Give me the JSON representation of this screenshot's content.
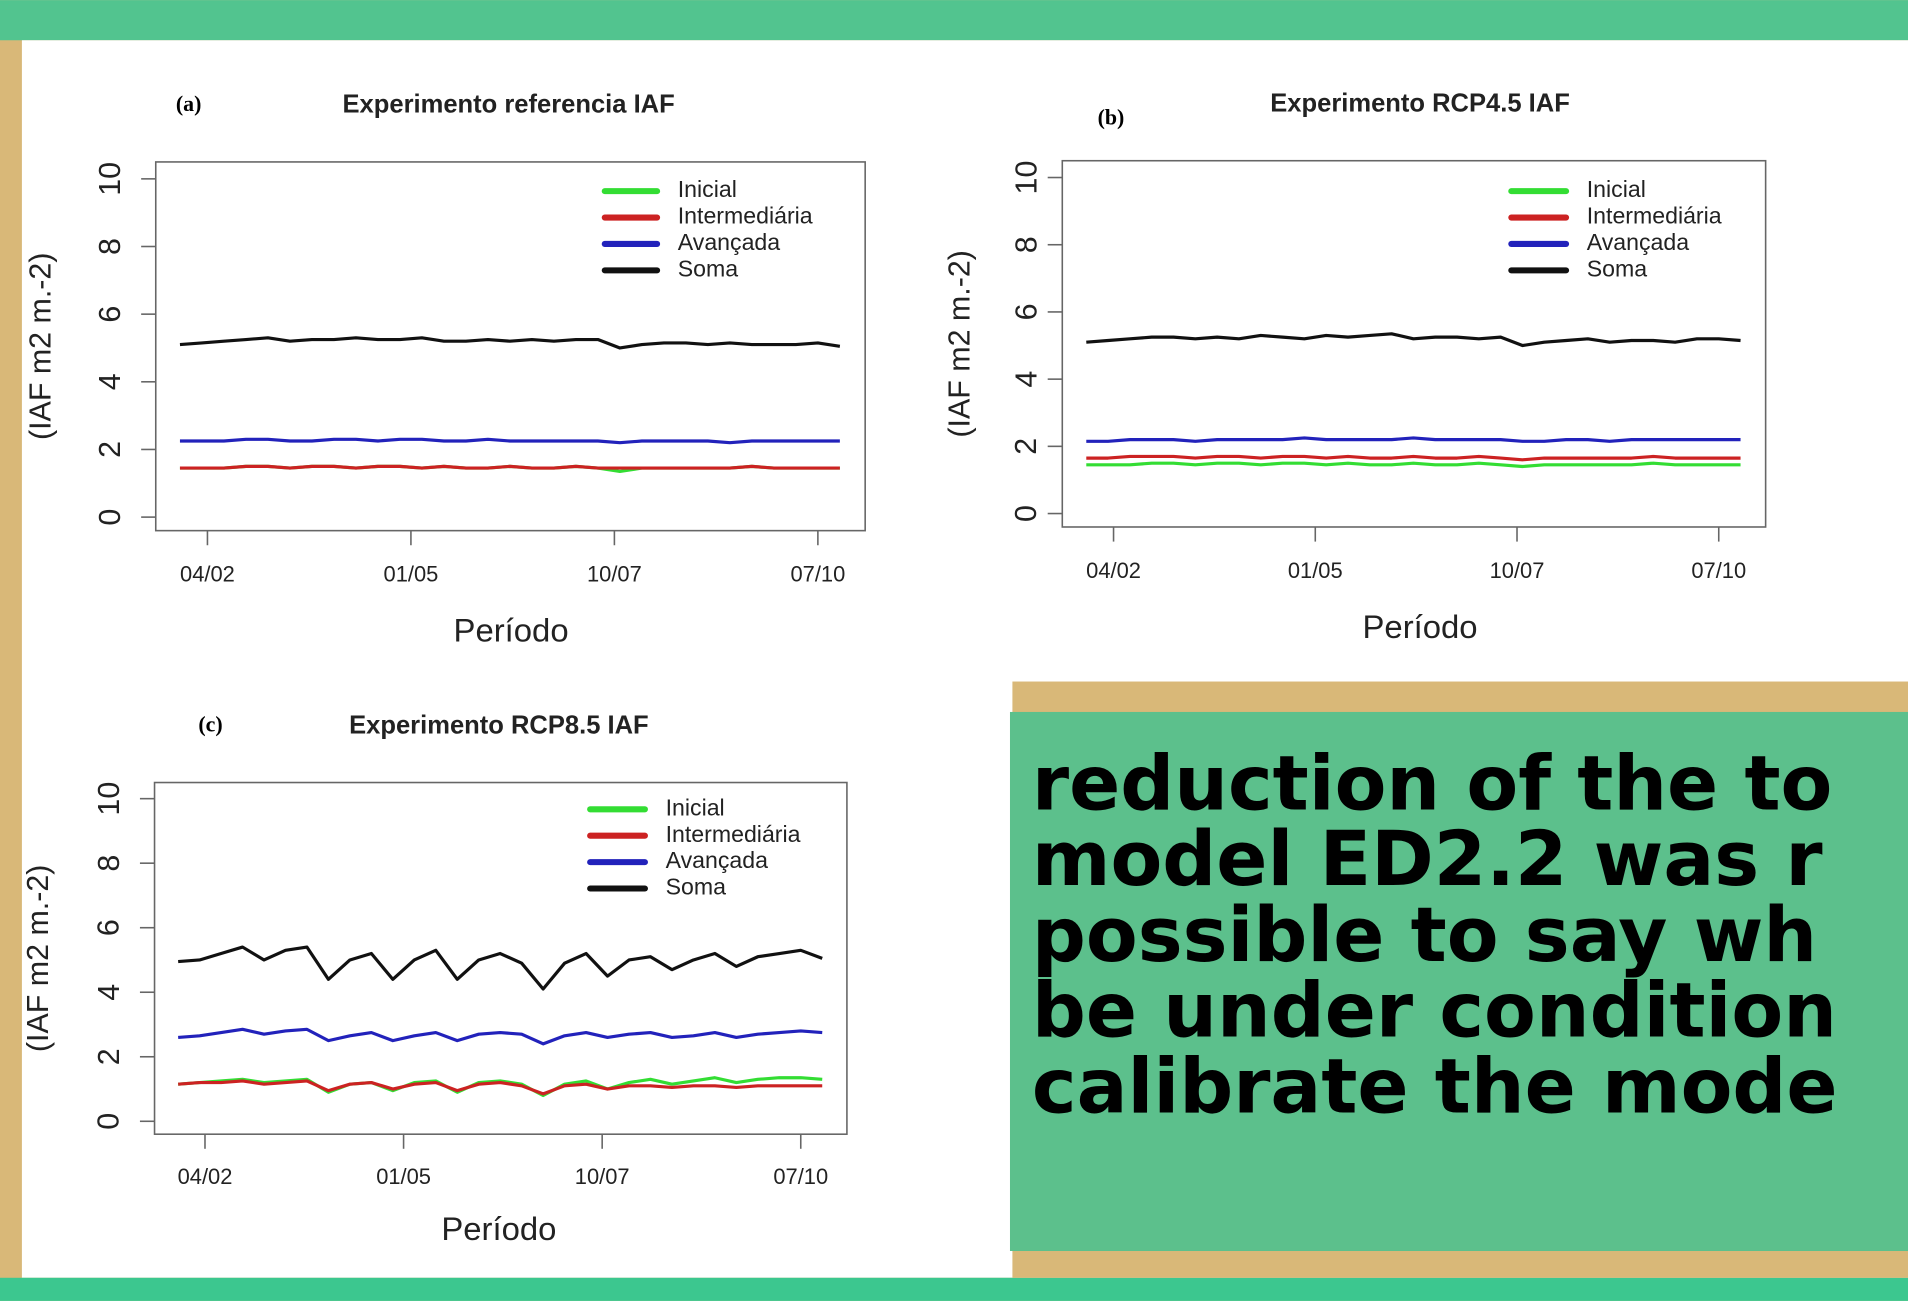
{
  "chart_data": [
    {
      "type": "line",
      "panel": "(a)",
      "title": "Experimento referencia IAF",
      "x_label": "Período",
      "y_label": "(IAF m2 m.-2)",
      "x": [
        0,
        2,
        4,
        6,
        8,
        10,
        12,
        14,
        16,
        18,
        20,
        22,
        24,
        26,
        28,
        30,
        32,
        34,
        36,
        38,
        40,
        42,
        44,
        46,
        48,
        50,
        52,
        54,
        56,
        58,
        60
      ],
      "xlim": [
        -2.2,
        62.3
      ],
      "xticks": [
        {
          "value": 2.5,
          "label": "04/02"
        },
        {
          "value": 21,
          "label": "01/05"
        },
        {
          "value": 39.5,
          "label": "10/07"
        },
        {
          "value": 58,
          "label": "07/10"
        }
      ],
      "ylim": [
        -0.4,
        10.5
      ],
      "yticks": [
        0,
        2,
        4,
        6,
        8,
        10
      ],
      "legend": "top-right",
      "series": [
        {
          "name": "Inicial",
          "color": "#33dd33",
          "values": [
            1.45,
            1.45,
            1.45,
            1.5,
            1.5,
            1.45,
            1.5,
            1.5,
            1.45,
            1.5,
            1.5,
            1.45,
            1.5,
            1.45,
            1.45,
            1.5,
            1.45,
            1.45,
            1.5,
            1.45,
            1.35,
            1.45,
            1.45,
            1.45,
            1.45,
            1.45,
            1.5,
            1.45,
            1.45,
            1.45,
            1.45
          ]
        },
        {
          "name": "Intermediária",
          "color": "#cc2222",
          "values": [
            1.45,
            1.45,
            1.45,
            1.5,
            1.5,
            1.45,
            1.5,
            1.5,
            1.45,
            1.5,
            1.5,
            1.45,
            1.5,
            1.45,
            1.45,
            1.5,
            1.45,
            1.45,
            1.5,
            1.45,
            1.45,
            1.45,
            1.45,
            1.45,
            1.45,
            1.45,
            1.5,
            1.45,
            1.45,
            1.45,
            1.45
          ]
        },
        {
          "name": "Avançada",
          "color": "#2222bb",
          "values": [
            2.25,
            2.25,
            2.25,
            2.3,
            2.3,
            2.25,
            2.25,
            2.3,
            2.3,
            2.25,
            2.3,
            2.3,
            2.25,
            2.25,
            2.3,
            2.25,
            2.25,
            2.25,
            2.25,
            2.25,
            2.2,
            2.25,
            2.25,
            2.25,
            2.25,
            2.2,
            2.25,
            2.25,
            2.25,
            2.25,
            2.25
          ]
        },
        {
          "name": "Soma",
          "color": "#111111",
          "values": [
            5.1,
            5.15,
            5.2,
            5.25,
            5.3,
            5.2,
            5.25,
            5.25,
            5.3,
            5.25,
            5.25,
            5.3,
            5.2,
            5.2,
            5.25,
            5.2,
            5.25,
            5.2,
            5.25,
            5.25,
            5.0,
            5.1,
            5.15,
            5.15,
            5.1,
            5.15,
            5.1,
            5.1,
            5.1,
            5.15,
            5.05
          ]
        }
      ]
    },
    {
      "type": "line",
      "panel": "(b)",
      "title": "Experimento RCP4.5 IAF",
      "x_label": "Período",
      "y_label": "(IAF m2 m.-2)",
      "x": [
        0,
        2,
        4,
        6,
        8,
        10,
        12,
        14,
        16,
        18,
        20,
        22,
        24,
        26,
        28,
        30,
        32,
        34,
        36,
        38,
        40,
        42,
        44,
        46,
        48,
        50,
        52,
        54,
        56,
        58,
        60
      ],
      "xlim": [
        -2.2,
        62.3
      ],
      "xticks": [
        {
          "value": 2.5,
          "label": "04/02"
        },
        {
          "value": 21,
          "label": "01/05"
        },
        {
          "value": 39.5,
          "label": "10/07"
        },
        {
          "value": 58,
          "label": "07/10"
        }
      ],
      "ylim": [
        -0.4,
        10.5
      ],
      "yticks": [
        0,
        2,
        4,
        6,
        8,
        10
      ],
      "legend": "top-right",
      "series": [
        {
          "name": "Inicial",
          "color": "#33dd33",
          "values": [
            1.45,
            1.45,
            1.45,
            1.5,
            1.5,
            1.45,
            1.5,
            1.5,
            1.45,
            1.5,
            1.5,
            1.45,
            1.5,
            1.45,
            1.45,
            1.5,
            1.45,
            1.45,
            1.5,
            1.45,
            1.4,
            1.45,
            1.45,
            1.45,
            1.45,
            1.45,
            1.5,
            1.45,
            1.45,
            1.45,
            1.45
          ]
        },
        {
          "name": "Intermediária",
          "color": "#cc2222",
          "values": [
            1.65,
            1.65,
            1.7,
            1.7,
            1.7,
            1.65,
            1.7,
            1.7,
            1.65,
            1.7,
            1.7,
            1.65,
            1.7,
            1.65,
            1.65,
            1.7,
            1.65,
            1.65,
            1.7,
            1.65,
            1.6,
            1.65,
            1.65,
            1.65,
            1.65,
            1.65,
            1.7,
            1.65,
            1.65,
            1.65,
            1.65
          ]
        },
        {
          "name": "Avançada",
          "color": "#2222bb",
          "values": [
            2.15,
            2.15,
            2.2,
            2.2,
            2.2,
            2.15,
            2.2,
            2.2,
            2.2,
            2.2,
            2.25,
            2.2,
            2.2,
            2.2,
            2.2,
            2.25,
            2.2,
            2.2,
            2.2,
            2.2,
            2.15,
            2.15,
            2.2,
            2.2,
            2.15,
            2.2,
            2.2,
            2.2,
            2.2,
            2.2,
            2.2
          ]
        },
        {
          "name": "Soma",
          "color": "#111111",
          "values": [
            5.1,
            5.15,
            5.2,
            5.25,
            5.25,
            5.2,
            5.25,
            5.2,
            5.3,
            5.25,
            5.2,
            5.3,
            5.25,
            5.3,
            5.35,
            5.2,
            5.25,
            5.25,
            5.2,
            5.25,
            5.0,
            5.1,
            5.15,
            5.2,
            5.1,
            5.15,
            5.15,
            5.1,
            5.2,
            5.2,
            5.15
          ]
        }
      ]
    },
    {
      "type": "line",
      "panel": "(c)",
      "title": "Experimento RCP8.5 IAF",
      "x_label": "Período",
      "y_label": "(IAF m2 m.-2)",
      "x": [
        0,
        2,
        4,
        6,
        8,
        10,
        12,
        14,
        16,
        18,
        20,
        22,
        24,
        26,
        28,
        30,
        32,
        34,
        36,
        38,
        40,
        42,
        44,
        46,
        48,
        50,
        52,
        54,
        56,
        58,
        60
      ],
      "xlim": [
        -2.2,
        62.3
      ],
      "xticks": [
        {
          "value": 2.5,
          "label": "04/02"
        },
        {
          "value": 21,
          "label": "01/05"
        },
        {
          "value": 39.5,
          "label": "10/07"
        },
        {
          "value": 58,
          "label": "07/10"
        }
      ],
      "ylim": [
        -0.4,
        10.5
      ],
      "yticks": [
        0,
        2,
        4,
        6,
        8,
        10
      ],
      "legend": "top-right",
      "series": [
        {
          "name": "Inicial",
          "color": "#33dd33",
          "values": [
            1.15,
            1.2,
            1.25,
            1.3,
            1.2,
            1.25,
            1.3,
            0.9,
            1.15,
            1.2,
            0.95,
            1.2,
            1.25,
            0.9,
            1.2,
            1.25,
            1.15,
            0.8,
            1.15,
            1.25,
            1.0,
            1.2,
            1.3,
            1.15,
            1.25,
            1.35,
            1.2,
            1.3,
            1.35,
            1.35,
            1.3
          ]
        },
        {
          "name": "Intermediária",
          "color": "#cc2222",
          "values": [
            1.15,
            1.2,
            1.2,
            1.25,
            1.15,
            1.2,
            1.25,
            0.95,
            1.15,
            1.2,
            1.0,
            1.15,
            1.2,
            0.95,
            1.15,
            1.2,
            1.1,
            0.85,
            1.1,
            1.15,
            1.0,
            1.1,
            1.1,
            1.05,
            1.1,
            1.1,
            1.05,
            1.1,
            1.1,
            1.1,
            1.1
          ]
        },
        {
          "name": "Avançada",
          "color": "#2222bb",
          "values": [
            2.6,
            2.65,
            2.75,
            2.85,
            2.7,
            2.8,
            2.85,
            2.5,
            2.65,
            2.75,
            2.5,
            2.65,
            2.75,
            2.5,
            2.7,
            2.75,
            2.7,
            2.4,
            2.65,
            2.75,
            2.6,
            2.7,
            2.75,
            2.6,
            2.65,
            2.75,
            2.6,
            2.7,
            2.75,
            2.8,
            2.75
          ]
        },
        {
          "name": "Soma",
          "color": "#111111",
          "values": [
            4.95,
            5.0,
            5.2,
            5.4,
            5.0,
            5.3,
            5.4,
            4.4,
            5.0,
            5.2,
            4.4,
            5.0,
            5.3,
            4.4,
            5.0,
            5.2,
            4.9,
            4.1,
            4.9,
            5.2,
            4.5,
            5.0,
            5.1,
            4.7,
            5.0,
            5.2,
            4.8,
            5.1,
            5.2,
            5.3,
            5.05
          ]
        }
      ]
    }
  ],
  "text_box": {
    "lines": [
      "reduction of the to",
      "model ED2.2 was r",
      "possible to say wh",
      "be under condition",
      "calibrate the mode"
    ]
  }
}
